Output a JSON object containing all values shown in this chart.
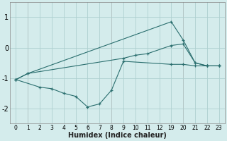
{
  "xlabel": "Humidex (Indice chaleur)",
  "bg_color": "#d4ecec",
  "grid_color": "#aed0d0",
  "line_color": "#2a6e6e",
  "tick_labels": [
    "0",
    "1",
    "2",
    "3",
    "4",
    "5",
    "6",
    "7",
    "8",
    "9",
    "10",
    "11",
    "12",
    "19",
    "20",
    "21",
    "22",
    "23"
  ],
  "series": {
    "line1": {
      "xi": [
        0,
        1,
        13,
        14,
        15,
        16,
        17
      ],
      "y": [
        -1.05,
        -0.85,
        0.85,
        0.25,
        -0.5,
        -0.6,
        -0.6
      ]
    },
    "line2": {
      "xi": [
        0,
        2,
        3,
        4,
        5,
        6,
        7,
        8,
        9,
        13,
        14,
        15,
        16,
        17
      ],
      "y": [
        -1.05,
        -1.3,
        -1.35,
        -1.5,
        -1.6,
        -1.95,
        -1.85,
        -1.4,
        -0.45,
        -0.55,
        -0.55,
        -0.6,
        -0.6,
        -0.6
      ]
    },
    "line3": {
      "xi": [
        0,
        1,
        9,
        10,
        11,
        13,
        14,
        15,
        16,
        17
      ],
      "y": [
        -1.05,
        -0.85,
        -0.35,
        -0.25,
        -0.2,
        0.07,
        0.12,
        -0.5,
        -0.6,
        -0.6
      ]
    }
  },
  "xlim": [
    -0.5,
    17.5
  ],
  "ylim": [
    -2.5,
    1.5
  ],
  "yticks": [
    -2,
    -1,
    0,
    1
  ]
}
